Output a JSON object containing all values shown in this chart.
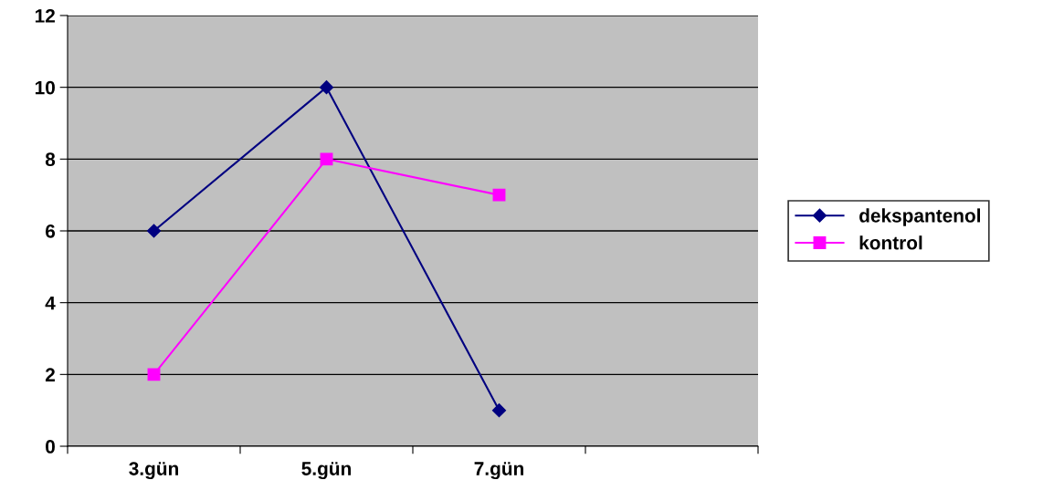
{
  "chart_data": {
    "type": "line",
    "categories": [
      "3.gün",
      "5.gün",
      "7.gün",
      null
    ],
    "series": [
      {
        "name": "dekspantenol",
        "color": "#000080",
        "marker": "diamond",
        "values": [
          6,
          10,
          1,
          null
        ]
      },
      {
        "name": "kontrol",
        "color": "#ff00ff",
        "marker": "square",
        "values": [
          2,
          8,
          7,
          null
        ]
      }
    ],
    "ylim": [
      0,
      12
    ],
    "yticks": [
      0,
      2,
      4,
      6,
      8,
      10,
      12
    ],
    "grid": "y",
    "legend": "right",
    "line_style": "solid"
  }
}
